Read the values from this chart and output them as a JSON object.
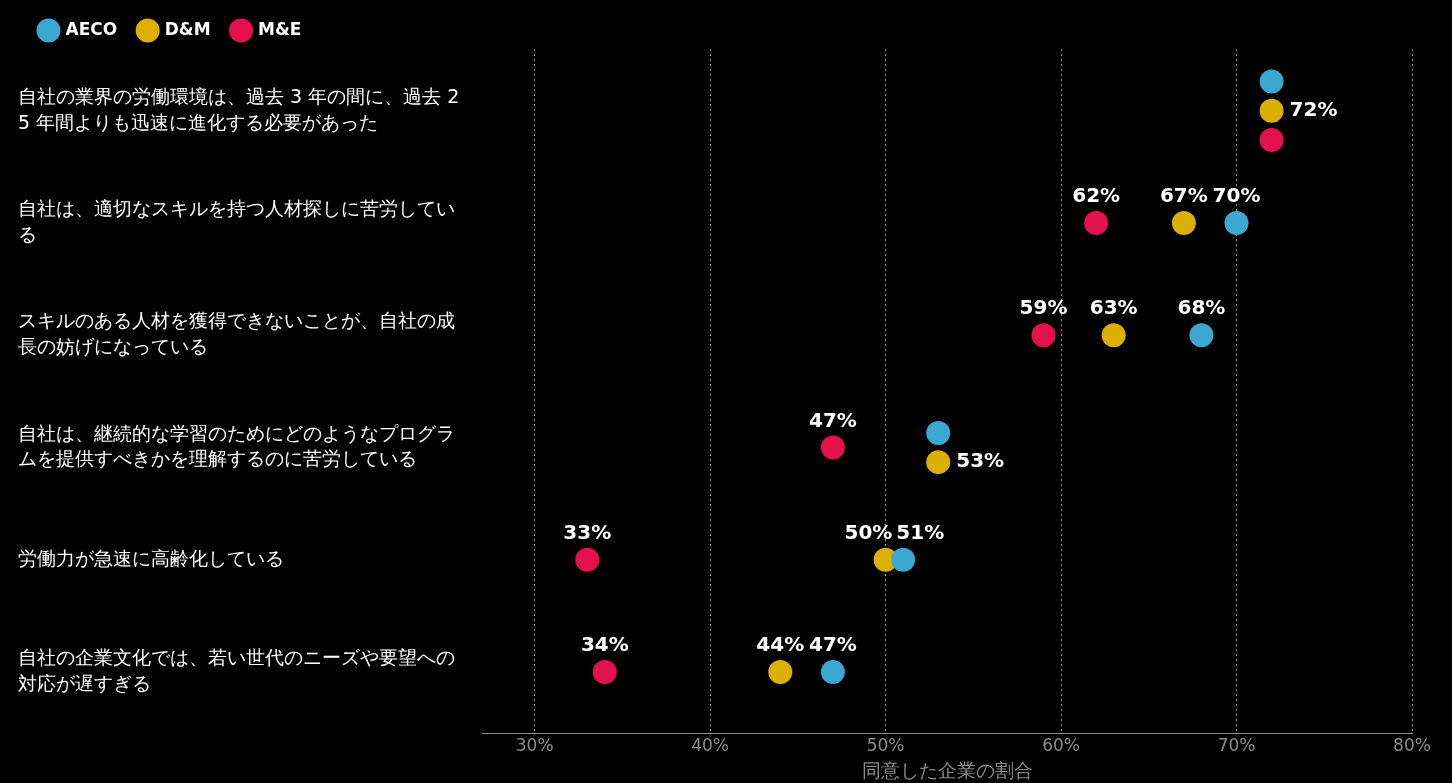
{
  "chart_data": {
    "type": "scatter",
    "orientation": "horizontal",
    "xlabel": "同意した企業の割合",
    "categories": [
      "自社の業界の労働環境は、過去 3 年の間に、過去 25 年間よりも迅速に進化する必要があった",
      "自社は、適切なスキルを持つ人材探しに苦労している",
      "スキルのある人材を獲得できないことが、自社の成長の妨げになっている",
      "自社は、継続的な学習のためにどのようなプログラムを提供すべきかを理解するのに苦労している",
      "労働力が急速に高齢化している",
      "自社の企業文化では、若い世代のニーズや要望への対応が遅すぎる"
    ],
    "series": [
      {
        "name": "AECO",
        "color": "#3aa8d0",
        "values": [
          72,
          70,
          68,
          53,
          51,
          47
        ],
        "value_labels": [
          null,
          "70%",
          "68%",
          null,
          "51%",
          "47%"
        ]
      },
      {
        "name": "D&M",
        "color": "#dcb000",
        "values": [
          72,
          67,
          63,
          53,
          50,
          44
        ],
        "value_labels": [
          "72%",
          "67%",
          "63%",
          "53%",
          "50%",
          "44%"
        ]
      },
      {
        "name": "M&E",
        "color": "#e5114f",
        "values": [
          72,
          62,
          59,
          47,
          33,
          34
        ],
        "value_labels": [
          null,
          "62%",
          "59%",
          "47%",
          "33%",
          "34%"
        ]
      }
    ],
    "xlim": [
      27,
      80
    ],
    "xticks": [
      {
        "value": 30,
        "label": "30%"
      },
      {
        "value": 40,
        "label": "40%"
      },
      {
        "value": 50,
        "label": "50%"
      },
      {
        "value": 60,
        "label": "60%"
      },
      {
        "value": 70,
        "label": "70%"
      },
      {
        "value": 80,
        "label": "80%"
      }
    ],
    "grid": "x",
    "legend": "top left",
    "marker": "circle"
  }
}
